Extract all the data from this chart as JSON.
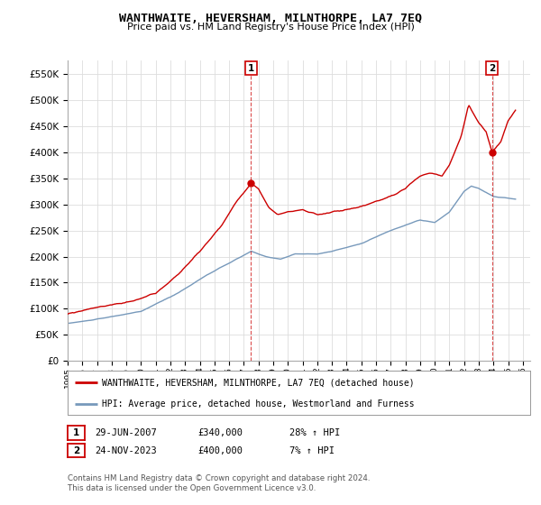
{
  "title": "WANTHWAITE, HEVERSHAM, MILNTHORPE, LA7 7EQ",
  "subtitle": "Price paid vs. HM Land Registry's House Price Index (HPI)",
  "ylim": [
    0,
    575000
  ],
  "yticks": [
    0,
    50000,
    100000,
    150000,
    200000,
    250000,
    300000,
    350000,
    400000,
    450000,
    500000,
    550000
  ],
  "xlim_start": 1995.0,
  "xlim_end": 2026.5,
  "grid_color": "#dddddd",
  "background_color": "#ffffff",
  "plot_bg_color": "#ffffff",
  "red_line_color": "#cc0000",
  "blue_line_color": "#7799bb",
  "transaction1": {
    "date_num": 2007.49,
    "price": 340000,
    "label": "1",
    "label_date": "29-JUN-2007",
    "label_price": "£340,000",
    "label_hpi": "28% ↑ HPI"
  },
  "transaction2": {
    "date_num": 2023.9,
    "price": 400000,
    "label": "2",
    "label_date": "24-NOV-2023",
    "label_price": "£400,000",
    "label_hpi": "7% ↑ HPI"
  },
  "legend_red_label": "WANTHWAITE, HEVERSHAM, MILNTHORPE, LA7 7EQ (detached house)",
  "legend_blue_label": "HPI: Average price, detached house, Westmorland and Furness",
  "footer": "Contains HM Land Registry data © Crown copyright and database right 2024.\nThis data is licensed under the Open Government Licence v3.0."
}
